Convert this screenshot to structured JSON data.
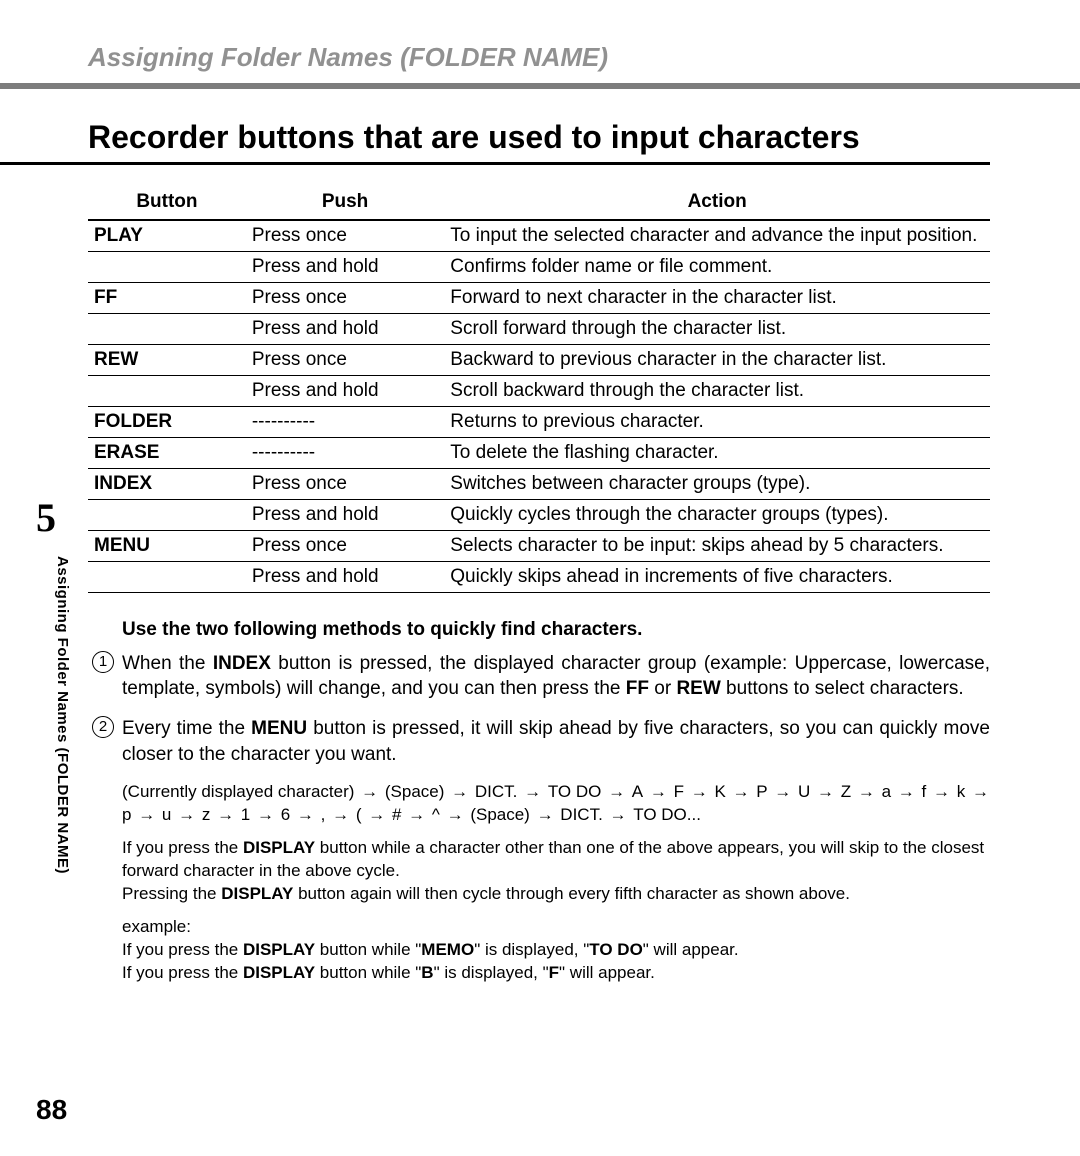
{
  "breadcrumb": "Assigning Folder Names (FOLDER NAME)",
  "section_title": "Recorder buttons that are used to input characters",
  "chapter_number": "5",
  "side_label": "Assigning Folder Names (FOLDER NAME)",
  "page_number": "88",
  "table": {
    "headers": {
      "button": "Button",
      "push": "Push",
      "action": "Action"
    },
    "rows": [
      {
        "button": "PLAY",
        "push": "Press once",
        "action": "To input the selected character and advance the input position."
      },
      {
        "button": "",
        "push": "Press and hold",
        "action": "Confirms folder name or file comment."
      },
      {
        "button": "FF",
        "push": "Press once",
        "action": "Forward to next character in the character list."
      },
      {
        "button": "",
        "push": "Press and hold",
        "action": "Scroll forward through the character list."
      },
      {
        "button": "REW",
        "push": "Press once",
        "action": "Backward to previous character in the character list."
      },
      {
        "button": "",
        "push": "Press and hold",
        "action": "Scroll backward through the character list."
      },
      {
        "button": "FOLDER",
        "push": "----------",
        "action": "Returns to previous character."
      },
      {
        "button": "ERASE",
        "push": "----------",
        "action": "To delete the flashing character."
      },
      {
        "button": "INDEX",
        "push": "Press once",
        "action": "Switches between character groups (type)."
      },
      {
        "button": "",
        "push": "Press and hold",
        "action": "Quickly cycles through the character groups (types)."
      },
      {
        "button": "MENU",
        "push": "Press once",
        "action": "Selects character to be input: skips ahead by 5 characters."
      },
      {
        "button": "",
        "push": "Press and hold",
        "action": "Quickly skips ahead in increments of five characters."
      }
    ]
  },
  "methods_heading": "Use the two following methods to quickly find characters.",
  "m1": {
    "t0": "When the ",
    "b0": "INDEX",
    "t1": " button is pressed, the displayed character group (example: Uppercase, lowercase, template, symbols) will change, and you can then press the ",
    "b1": "FF",
    "t2": " or ",
    "b2": "REW",
    "t3": " buttons to select characters."
  },
  "m2": {
    "t0": "Every time the ",
    "b0": "MENU",
    "t1": " button is pressed, it will skip ahead by five characters, so you can quickly move closer to the character you want."
  },
  "seq": {
    "lead": "(Currently displayed character)",
    "items": [
      "(Space)",
      "DICT.",
      "TO DO",
      "A",
      "F",
      "K",
      "P",
      "U",
      "Z",
      "a",
      "f",
      "k",
      "p",
      "u",
      "z",
      "1",
      "6",
      ",",
      "(",
      "#",
      "^",
      "(Space)",
      "DICT.",
      "TO DO..."
    ]
  },
  "note1": {
    "t0": "If you press the ",
    "b0": "DISPLAY",
    "t1": " button while a character other than one of the above appears, you will skip to the closest forward character in the above cycle."
  },
  "note2": {
    "t0": "Pressing the ",
    "b0": "DISPLAY",
    "t1": " button again will then cycle through every fifth character as shown above."
  },
  "example_label": "example:",
  "ex1": {
    "t0": "If you press the ",
    "b0": "DISPLAY",
    "t1": " button while \"",
    "b1": "MEMO",
    "t2": "\" is displayed, \"",
    "b2": "TO DO",
    "t3": "\" will appear."
  },
  "ex2": {
    "t0": "If you press the ",
    "b0": "DISPLAY",
    "t1": " button while \"",
    "b1": "B",
    "t2": "\" is displayed, \"",
    "b2": "F",
    "t3": "\" will appear."
  },
  "arrow_glyph": "→"
}
